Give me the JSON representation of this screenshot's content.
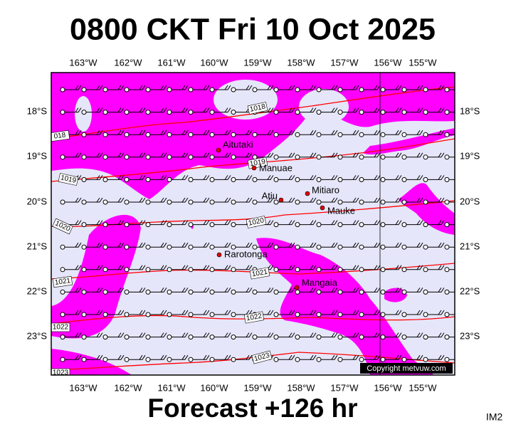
{
  "header": {
    "title": "0800 CKT Fri 10 Oct 2025"
  },
  "map": {
    "longitude_labels": [
      "163°W",
      "162°W",
      "161°W",
      "160°W",
      "159°W",
      "158°W",
      "157°W",
      "156°W",
      "155°W"
    ],
    "latitude_labels": [
      "18°S",
      "19°S",
      "20°S",
      "21°S",
      "22°S",
      "23°S"
    ],
    "places": [
      {
        "name": "Aitutaki"
      },
      {
        "name": "Manuae"
      },
      {
        "name": "Atiu"
      },
      {
        "name": "Mitiaro"
      },
      {
        "name": "Mauke"
      },
      {
        "name": "Rarotonga"
      },
      {
        "name": "Mangaia"
      }
    ],
    "isobar_labels": [
      "1018",
      "018",
      "1019",
      "1019",
      "1020",
      "1020",
      "1021",
      "1021",
      "1022",
      "1022",
      "1023",
      "1023"
    ],
    "copyright": "Copyright metvuw.com"
  },
  "footer": {
    "caption": "Forecast +126 hr",
    "image_id": "IM2"
  }
}
